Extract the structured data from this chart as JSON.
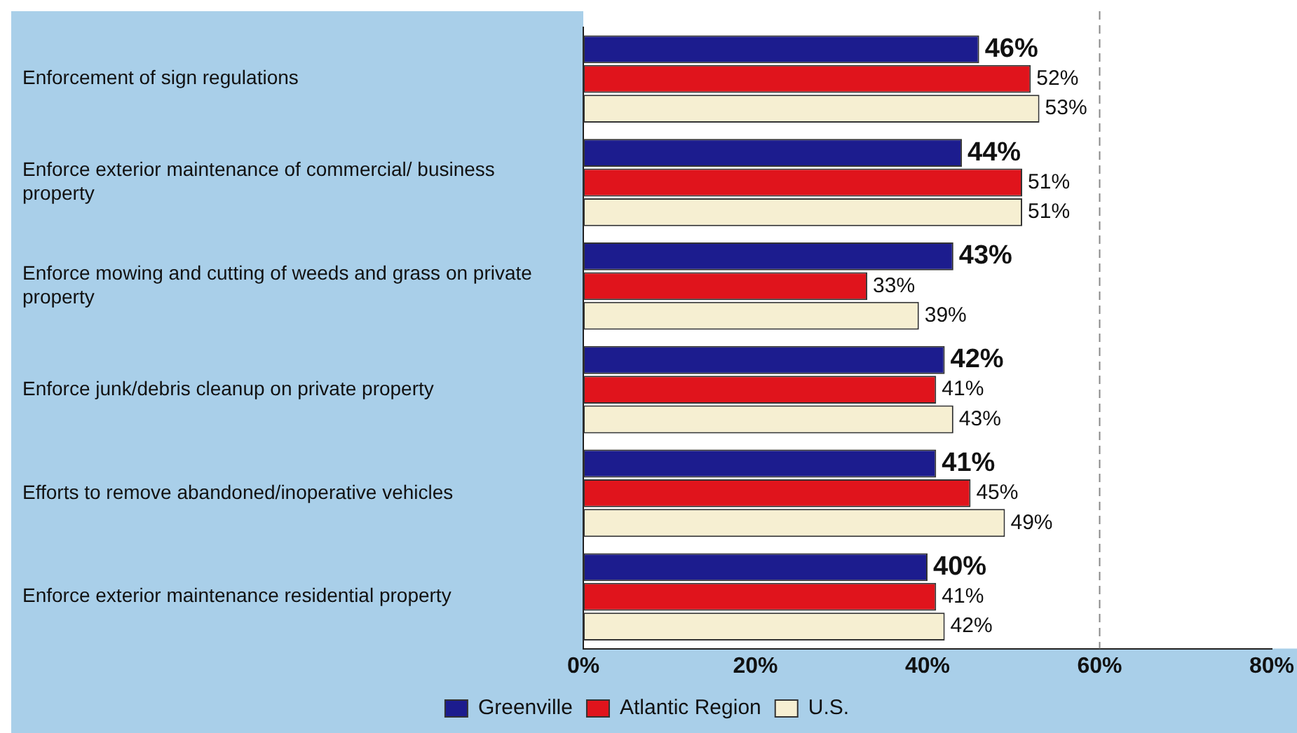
{
  "chart_data": {
    "type": "bar",
    "orientation": "horizontal",
    "categories": [
      "Enforcement of sign regulations",
      "Enforce exterior maintenance of commercial/ business property",
      "Enforce mowing and cutting of weeds and grass on private property",
      "Enforce junk/debris cleanup on private property",
      "Efforts to remove abandoned/inoperative vehicles",
      "Enforce exterior maintenance residential property"
    ],
    "series": [
      {
        "name": "Greenville",
        "color": "#1c1c8e",
        "values": [
          46,
          44,
          43,
          42,
          41,
          40
        ],
        "value_labels": [
          "46%",
          "44%",
          "43%",
          "42%",
          "41%",
          "40%"
        ]
      },
      {
        "name": "Atlantic Region",
        "color": "#e0141c",
        "values": [
          52,
          51,
          33,
          41,
          45,
          41
        ],
        "value_labels": [
          "52%",
          "51%",
          "33%",
          "41%",
          "45%",
          "41%"
        ]
      },
      {
        "name": "U.S.",
        "color": "#f6efd2",
        "values": [
          53,
          51,
          39,
          43,
          49,
          42
        ],
        "value_labels": [
          "53%",
          "51%",
          "39%",
          "43%",
          "49%",
          "42%"
        ]
      }
    ],
    "xlim": [
      0,
      80
    ],
    "xticks": [
      {
        "value": 0,
        "label": "0%"
      },
      {
        "value": 20,
        "label": "20%"
      },
      {
        "value": 40,
        "label": "40%"
      },
      {
        "value": 60,
        "label": "60%"
      },
      {
        "value": 80,
        "label": "80%"
      }
    ],
    "ref_lines": [
      {
        "axis": "x",
        "value": 60,
        "line_style": "dashed",
        "color": "#888888"
      }
    ],
    "grid": false,
    "legend": "bottom"
  }
}
